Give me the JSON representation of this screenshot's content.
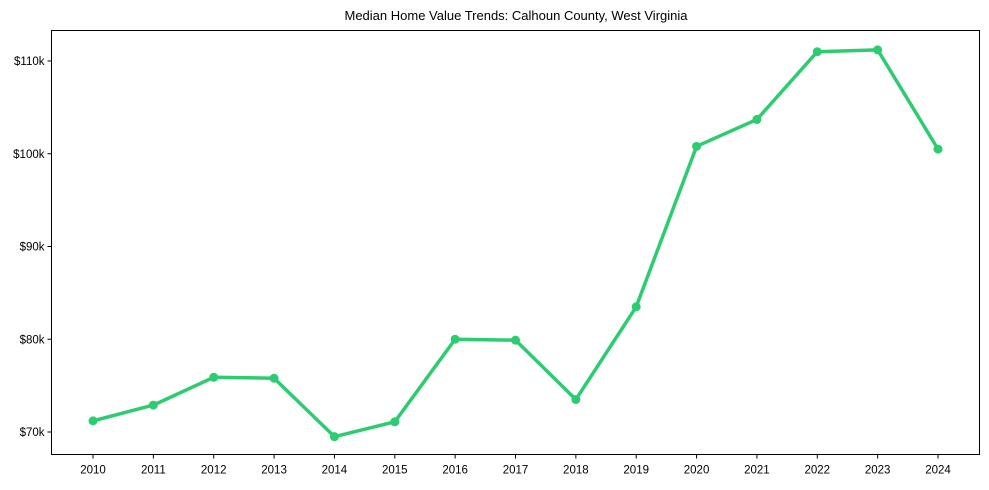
{
  "chart_data": {
    "type": "line",
    "title": "Median Home Value Trends: Calhoun County, West Virginia",
    "xlabel": "",
    "ylabel": "",
    "x": [
      "2010",
      "2011",
      "2012",
      "2013",
      "2014",
      "2015",
      "2016",
      "2017",
      "2018",
      "2019",
      "2020",
      "2021",
      "2022",
      "2023",
      "2024"
    ],
    "series": [
      {
        "name": "Median Home Value",
        "color": "#2ecc71",
        "marker": "circle",
        "values": [
          71200,
          72900,
          75900,
          75800,
          69500,
          71100,
          80000,
          79900,
          73500,
          83500,
          100800,
          103700,
          111000,
          111200,
          100500
        ]
      }
    ],
    "yticks": [
      70000,
      80000,
      90000,
      100000,
      110000
    ],
    "ytick_labels": [
      "$70k",
      "$80k",
      "$90k",
      "$100k",
      "$110k"
    ],
    "ylim": [
      67500,
      113300
    ],
    "grid": false,
    "legend": null
  }
}
